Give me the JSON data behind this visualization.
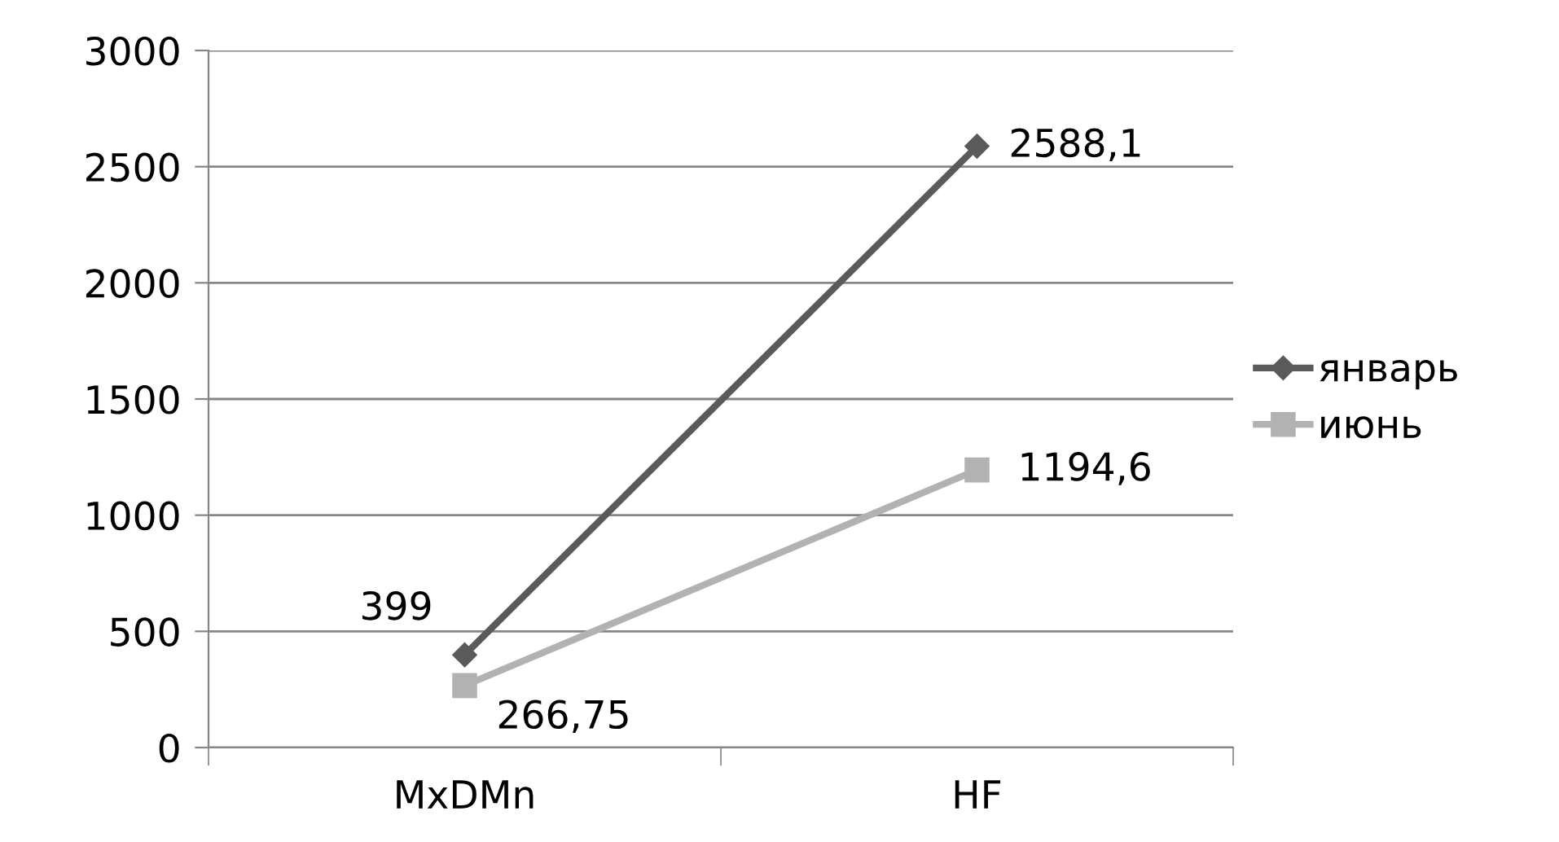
{
  "chart_data": {
    "type": "line",
    "categories": [
      "MxDMn",
      "HF"
    ],
    "series": [
      {
        "name": "январь",
        "color": "#5a5a5a",
        "marker": "diamond",
        "values": [
          399,
          2588.1
        ],
        "value_labels": [
          "399",
          "2588,1"
        ]
      },
      {
        "name": "июнь",
        "color": "#b2b2b2",
        "marker": "square",
        "values": [
          266.75,
          1194.6
        ],
        "value_labels": [
          "266,75",
          "1194,6"
        ]
      }
    ],
    "ylim": [
      0,
      3000
    ],
    "yticks": [
      0,
      500,
      1000,
      1500,
      2000,
      2500,
      3000
    ],
    "grid": "y",
    "legend": "right",
    "line_style": "solid"
  }
}
